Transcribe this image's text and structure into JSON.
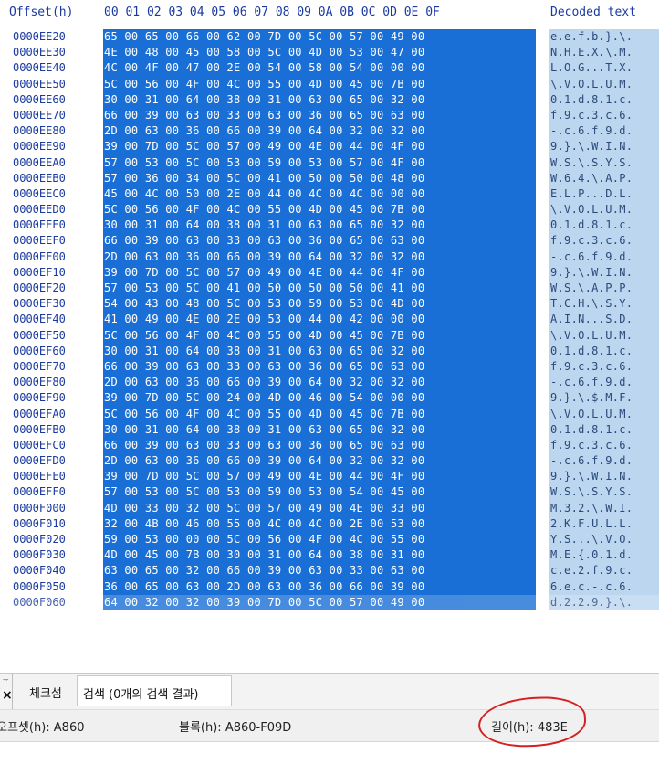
{
  "header": {
    "offset_label": "Offset(h)",
    "columns": "00 01 02 03 04 05 06 07 08 09 0A 0B 0C 0D 0E 0F",
    "decoded_label": "Decoded text"
  },
  "rows": [
    {
      "offset": "0000EE20",
      "hex": "65 00 65 00 66 00 62 00 7D 00 5C 00 57 00 49 00",
      "text": "e.e.f.b.}.\\."
    },
    {
      "offset": "0000EE30",
      "hex": "4E 00 48 00 45 00 58 00 5C 00 4D 00 53 00 47 00",
      "text": "N.H.E.X.\\.M."
    },
    {
      "offset": "0000EE40",
      "hex": "4C 00 4F 00 47 00 2E 00 54 00 58 00 54 00 00 00",
      "text": "L.O.G...T.X."
    },
    {
      "offset": "0000EE50",
      "hex": "5C 00 56 00 4F 00 4C 00 55 00 4D 00 45 00 7B 00",
      "text": "\\.V.O.L.U.M."
    },
    {
      "offset": "0000EE60",
      "hex": "30 00 31 00 64 00 38 00 31 00 63 00 65 00 32 00",
      "text": "0.1.d.8.1.c."
    },
    {
      "offset": "0000EE70",
      "hex": "66 00 39 00 63 00 33 00 63 00 36 00 65 00 63 00",
      "text": "f.9.c.3.c.6."
    },
    {
      "offset": "0000EE80",
      "hex": "2D 00 63 00 36 00 66 00 39 00 64 00 32 00 32 00",
      "text": "-.c.6.f.9.d."
    },
    {
      "offset": "0000EE90",
      "hex": "39 00 7D 00 5C 00 57 00 49 00 4E 00 44 00 4F 00",
      "text": "9.}.\\.W.I.N."
    },
    {
      "offset": "0000EEA0",
      "hex": "57 00 53 00 5C 00 53 00 59 00 53 00 57 00 4F 00",
      "text": "W.S.\\.S.Y.S."
    },
    {
      "offset": "0000EEB0",
      "hex": "57 00 36 00 34 00 5C 00 41 00 50 00 50 00 48 00",
      "text": "W.6.4.\\.A.P."
    },
    {
      "offset": "0000EEC0",
      "hex": "45 00 4C 00 50 00 2E 00 44 00 4C 00 4C 00 00 00",
      "text": "E.L.P...D.L."
    },
    {
      "offset": "0000EED0",
      "hex": "5C 00 56 00 4F 00 4C 00 55 00 4D 00 45 00 7B 00",
      "text": "\\.V.O.L.U.M."
    },
    {
      "offset": "0000EEE0",
      "hex": "30 00 31 00 64 00 38 00 31 00 63 00 65 00 32 00",
      "text": "0.1.d.8.1.c."
    },
    {
      "offset": "0000EEF0",
      "hex": "66 00 39 00 63 00 33 00 63 00 36 00 65 00 63 00",
      "text": "f.9.c.3.c.6."
    },
    {
      "offset": "0000EF00",
      "hex": "2D 00 63 00 36 00 66 00 39 00 64 00 32 00 32 00",
      "text": "-.c.6.f.9.d."
    },
    {
      "offset": "0000EF10",
      "hex": "39 00 7D 00 5C 00 57 00 49 00 4E 00 44 00 4F 00",
      "text": "9.}.\\.W.I.N."
    },
    {
      "offset": "0000EF20",
      "hex": "57 00 53 00 5C 00 41 00 50 00 50 00 50 00 41 00",
      "text": "W.S.\\.A.P.P."
    },
    {
      "offset": "0000EF30",
      "hex": "54 00 43 00 48 00 5C 00 53 00 59 00 53 00 4D 00",
      "text": "T.C.H.\\.S.Y."
    },
    {
      "offset": "0000EF40",
      "hex": "41 00 49 00 4E 00 2E 00 53 00 44 00 42 00 00 00",
      "text": "A.I.N...S.D."
    },
    {
      "offset": "0000EF50",
      "hex": "5C 00 56 00 4F 00 4C 00 55 00 4D 00 45 00 7B 00",
      "text": "\\.V.O.L.U.M."
    },
    {
      "offset": "0000EF60",
      "hex": "30 00 31 00 64 00 38 00 31 00 63 00 65 00 32 00",
      "text": "0.1.d.8.1.c."
    },
    {
      "offset": "0000EF70",
      "hex": "66 00 39 00 63 00 33 00 63 00 36 00 65 00 63 00",
      "text": "f.9.c.3.c.6."
    },
    {
      "offset": "0000EF80",
      "hex": "2D 00 63 00 36 00 66 00 39 00 64 00 32 00 32 00",
      "text": "-.c.6.f.9.d."
    },
    {
      "offset": "0000EF90",
      "hex": "39 00 7D 00 5C 00 24 00 4D 00 46 00 54 00 00 00",
      "text": "9.}.\\.$.M.F."
    },
    {
      "offset": "0000EFA0",
      "hex": "5C 00 56 00 4F 00 4C 00 55 00 4D 00 45 00 7B 00",
      "text": "\\.V.O.L.U.M."
    },
    {
      "offset": "0000EFB0",
      "hex": "30 00 31 00 64 00 38 00 31 00 63 00 65 00 32 00",
      "text": "0.1.d.8.1.c."
    },
    {
      "offset": "0000EFC0",
      "hex": "66 00 39 00 63 00 33 00 63 00 36 00 65 00 63 00",
      "text": "f.9.c.3.c.6."
    },
    {
      "offset": "0000EFD0",
      "hex": "2D 00 63 00 36 00 66 00 39 00 64 00 32 00 32 00",
      "text": "-.c.6.f.9.d."
    },
    {
      "offset": "0000EFE0",
      "hex": "39 00 7D 00 5C 00 57 00 49 00 4E 00 44 00 4F 00",
      "text": "9.}.\\.W.I.N."
    },
    {
      "offset": "0000EFF0",
      "hex": "57 00 53 00 5C 00 53 00 59 00 53 00 54 00 45 00",
      "text": "W.S.\\.S.Y.S."
    },
    {
      "offset": "0000F000",
      "hex": "4D 00 33 00 32 00 5C 00 57 00 49 00 4E 00 33 00",
      "text": "M.3.2.\\.W.I."
    },
    {
      "offset": "0000F010",
      "hex": "32 00 4B 00 46 00 55 00 4C 00 4C 00 2E 00 53 00",
      "text": "2.K.F.U.L.L."
    },
    {
      "offset": "0000F020",
      "hex": "59 00 53 00 00 00 5C 00 56 00 4F 00 4C 00 55 00",
      "text": "Y.S...\\.V.O."
    },
    {
      "offset": "0000F030",
      "hex": "4D 00 45 00 7B 00 30 00 31 00 64 00 38 00 31 00",
      "text": "M.E.{.0.1.d."
    },
    {
      "offset": "0000F040",
      "hex": "63 00 65 00 32 00 66 00 39 00 63 00 33 00 63 00",
      "text": "c.e.2.f.9.c."
    },
    {
      "offset": "0000F050",
      "hex": "36 00 65 00 63 00 2D 00 63 00 36 00 66 00 39 00",
      "text": "6.e.c.-.c.6."
    },
    {
      "offset": "0000F060",
      "hex": "64 00 32 00 32 00 39 00 7D 00 5C 00 57 00 49 00",
      "text": "d.2.2.9.}.\\."
    }
  ],
  "search_panel": {
    "pin_mark": "ᅲ",
    "close_symbol": "×",
    "tabs": [
      {
        "label": "체크섬"
      },
      {
        "label": "검색 (0개의 검색 결과)"
      }
    ]
  },
  "status": {
    "offset": "오프셋(h): A860",
    "block": "블록(h): A860-F09D",
    "length": "길이(h): 483E"
  },
  "colors": {
    "selection_blue": "#1a6fd6",
    "decoded_highlight": "#bcd6ef",
    "offset_text": "#1a3aa0",
    "annotation_red": "#d42020"
  }
}
